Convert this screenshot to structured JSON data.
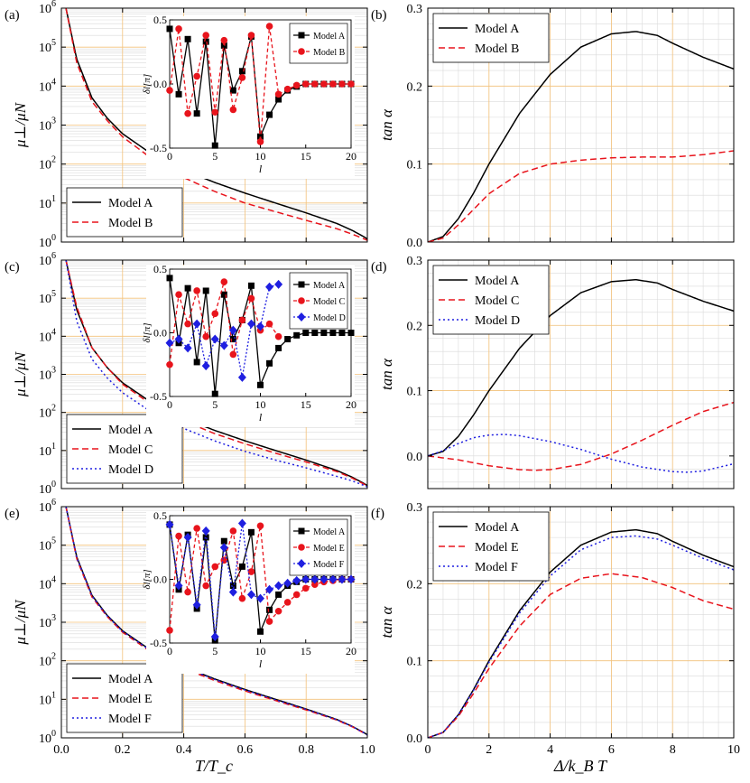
{
  "figure": {
    "xlabel_left": "T/T_c",
    "xlabel_right": "Δ/k_B T"
  },
  "colors": {
    "model_a": "#000000",
    "model_red": "#e8141c",
    "model_blue": "#1f1fe0",
    "grid_major": "#f4c27a",
    "grid_minor": "#dadada"
  },
  "chart_data": [
    {
      "id": "a",
      "panel_label": "(a)",
      "type": "line",
      "scale": "log",
      "ylabel": "μ⊥/μN",
      "xlim": [
        0,
        1
      ],
      "ylim_exp": [
        0,
        6
      ],
      "xticks": [
        "0.0",
        "0.2",
        "0.4",
        "0.6",
        "0.8",
        "1.0"
      ],
      "yticks": [
        "10^0",
        "10^1",
        "10^2",
        "10^3",
        "10^4",
        "10^5",
        "10^6"
      ],
      "show_xticklabels": false,
      "legend_loc": "lower-left",
      "series": [
        {
          "name": "Model A",
          "color": "#000000",
          "dash": "",
          "x": [
            0.015,
            0.05,
            0.1,
            0.15,
            0.2,
            0.3,
            0.4,
            0.5,
            0.6,
            0.7,
            0.8,
            0.9,
            0.95,
            0.99,
            1.0
          ],
          "y": [
            1000000,
            50000,
            5000,
            1500,
            600,
            170,
            70,
            34,
            18,
            10,
            5.6,
            3.0,
            2.0,
            1.35,
            1.2
          ]
        },
        {
          "name": "Model B",
          "color": "#e8141c",
          "dash": "7,4",
          "x": [
            0.015,
            0.05,
            0.1,
            0.15,
            0.2,
            0.3,
            0.4,
            0.5,
            0.6,
            0.7,
            0.8,
            0.9,
            0.95,
            0.99,
            1.0
          ],
          "y": [
            1000000,
            40000,
            4000,
            1300,
            500,
            130,
            45,
            20,
            10,
            6,
            3.6,
            2.2,
            1.6,
            1.2,
            1.1
          ]
        }
      ],
      "inset": {
        "xlabel": "l",
        "ylabel": "δl[π]",
        "xlim": [
          0,
          20
        ],
        "ylim": [
          -0.5,
          0.5
        ],
        "xticks": [
          "0",
          "5",
          "10",
          "15",
          "20"
        ],
        "yticks": [
          "-0.5",
          "0.0",
          "0.5"
        ],
        "series": [
          {
            "name": "Model A",
            "color": "#000000",
            "dash": "",
            "marker": "square",
            "y": [
              0.43,
              -0.08,
              0.35,
              -0.23,
              0.33,
              -0.48,
              0.3,
              -0.05,
              0.1,
              0.37,
              -0.41,
              -0.24,
              -0.12,
              -0.05,
              -0.02,
              0.0,
              0.0,
              0.0,
              0.0,
              0.0,
              0.0
            ]
          },
          {
            "name": "Model B",
            "color": "#e8141c",
            "dash": "4,3",
            "marker": "circle",
            "y": [
              -0.05,
              0.43,
              -0.23,
              0.06,
              0.38,
              -0.22,
              0.34,
              -0.2,
              0.05,
              0.38,
              -0.45,
              0.45,
              -0.08,
              -0.04,
              -0.01,
              0.0,
              0.0,
              0.0,
              0.0,
              0.0,
              0.0
            ]
          }
        ]
      }
    },
    {
      "id": "b",
      "panel_label": "(b)",
      "type": "line",
      "scale": "linear",
      "ylabel": "tan α",
      "xlim": [
        0,
        10
      ],
      "ylim": [
        0,
        0.3
      ],
      "xticks": [
        "0",
        "2",
        "4",
        "6",
        "8",
        "10"
      ],
      "yticks": [
        "0.0",
        "0.1",
        "0.2",
        "0.3"
      ],
      "show_xticklabels": false,
      "legend_loc": "top-left",
      "series": [
        {
          "name": "Model A",
          "color": "#000000",
          "dash": "",
          "x": [
            0,
            0.5,
            1,
            1.5,
            2,
            3,
            4,
            5,
            6,
            6.8,
            7.5,
            8,
            9,
            10
          ],
          "y": [
            0,
            0.007,
            0.03,
            0.063,
            0.1,
            0.165,
            0.215,
            0.25,
            0.267,
            0.27,
            0.265,
            0.255,
            0.237,
            0.222
          ]
        },
        {
          "name": "Model B",
          "color": "#e8141c",
          "dash": "7,4",
          "x": [
            0,
            0.5,
            1,
            1.5,
            2,
            3,
            4,
            5,
            6,
            7,
            8,
            9,
            10
          ],
          "y": [
            0,
            0.005,
            0.022,
            0.042,
            0.062,
            0.088,
            0.1,
            0.105,
            0.108,
            0.109,
            0.109,
            0.112,
            0.117
          ]
        }
      ]
    },
    {
      "id": "c",
      "panel_label": "(c)",
      "type": "line",
      "scale": "log",
      "ylabel": "μ⊥/μN",
      "xlim": [
        0,
        1
      ],
      "ylim_exp": [
        0,
        6
      ],
      "xticks": [
        "0.0",
        "0.2",
        "0.4",
        "0.6",
        "0.8",
        "1.0"
      ],
      "yticks": [
        "10^0",
        "10^1",
        "10^2",
        "10^3",
        "10^4",
        "10^5",
        "10^6"
      ],
      "show_xticklabels": false,
      "legend_loc": "lower-left",
      "series": [
        {
          "name": "Model A",
          "color": "#000000",
          "dash": "",
          "x": [
            0.015,
            0.05,
            0.1,
            0.15,
            0.2,
            0.3,
            0.4,
            0.5,
            0.6,
            0.7,
            0.8,
            0.9,
            0.95,
            0.99,
            1.0
          ],
          "y": [
            1000000,
            50000,
            5000,
            1500,
            600,
            170,
            70,
            34,
            18,
            10,
            5.6,
            3.0,
            2.0,
            1.35,
            1.2
          ]
        },
        {
          "name": "Model C",
          "color": "#e8141c",
          "dash": "7,4",
          "x": [
            0.015,
            0.05,
            0.1,
            0.15,
            0.2,
            0.3,
            0.4,
            0.5,
            0.6,
            0.7,
            0.8,
            0.9,
            0.95,
            0.99,
            1.0
          ],
          "y": [
            1000000,
            60000,
            5000,
            1500,
            550,
            150,
            60,
            28,
            15,
            8.5,
            5,
            2.8,
            1.9,
            1.3,
            1.15
          ]
        },
        {
          "name": "Model D",
          "color": "#1f1fe0",
          "dash": "2,3",
          "x": [
            0.015,
            0.05,
            0.1,
            0.15,
            0.2,
            0.3,
            0.4,
            0.5,
            0.6,
            0.7,
            0.8,
            0.9,
            0.95,
            0.99,
            1.0
          ],
          "y": [
            1000000,
            25000,
            2500,
            800,
            330,
            95,
            38,
            18,
            9.5,
            5.6,
            3.5,
            2.1,
            1.6,
            1.2,
            1.1
          ]
        }
      ],
      "inset": {
        "xlabel": "l",
        "ylabel": "δl[π]",
        "xlim": [
          0,
          20
        ],
        "ylim": [
          -0.5,
          0.5
        ],
        "xticks": [
          "0",
          "5",
          "10",
          "15",
          "20"
        ],
        "yticks": [
          "-0.5",
          "0.0",
          "0.5"
        ],
        "series": [
          {
            "name": "Model A",
            "color": "#000000",
            "dash": "",
            "marker": "square",
            "y": [
              0.43,
              -0.08,
              0.35,
              -0.23,
              0.33,
              -0.48,
              0.3,
              -0.05,
              0.1,
              0.37,
              -0.41,
              -0.24,
              -0.12,
              -0.05,
              -0.02,
              0.0,
              0.0,
              0.0,
              0.0,
              0.0,
              0.0
            ]
          },
          {
            "name": "Model C",
            "color": "#e8141c",
            "dash": "4,3",
            "marker": "circle",
            "y": [
              -0.25,
              0.3,
              0.07,
              0.33,
              -0.03,
              0.15,
              0.4,
              -0.17,
              0.1,
              0.27,
              0.02,
              0.07,
              -0.03
            ]
          },
          {
            "name": "Model D",
            "color": "#1f1fe0",
            "dash": "2,2",
            "marker": "diamond",
            "y": [
              -0.08,
              -0.05,
              -0.12,
              0.07,
              -0.26,
              -0.05,
              -0.1,
              0.02,
              -0.35,
              0.07,
              0.05,
              0.36,
              0.38
            ]
          }
        ]
      }
    },
    {
      "id": "d",
      "panel_label": "(d)",
      "type": "line",
      "scale": "linear",
      "ylabel": "tan α",
      "xlim": [
        0,
        10
      ],
      "ylim": [
        -0.05,
        0.3
      ],
      "xticks": [
        "0",
        "2",
        "4",
        "6",
        "8",
        "10"
      ],
      "yticks": [
        "0.0",
        "0.1",
        "0.2",
        "0.3"
      ],
      "show_xticklabels": false,
      "legend_loc": "top-left",
      "series": [
        {
          "name": "Model A",
          "color": "#000000",
          "dash": "",
          "x": [
            0,
            0.5,
            1,
            1.5,
            2,
            3,
            4,
            5,
            6,
            6.8,
            7.5,
            8,
            9,
            10
          ],
          "y": [
            0,
            0.007,
            0.03,
            0.063,
            0.1,
            0.165,
            0.215,
            0.25,
            0.267,
            0.27,
            0.265,
            0.255,
            0.237,
            0.222
          ]
        },
        {
          "name": "Model C",
          "color": "#e8141c",
          "dash": "7,4",
          "x": [
            0,
            1,
            2,
            3,
            3.5,
            4,
            5,
            6,
            7,
            8,
            9,
            10
          ],
          "y": [
            0,
            -0.006,
            -0.015,
            -0.021,
            -0.022,
            -0.021,
            -0.013,
            0.003,
            0.024,
            0.047,
            0.068,
            0.082
          ]
        },
        {
          "name": "Model D",
          "color": "#1f1fe0",
          "dash": "2,3",
          "x": [
            0,
            0.5,
            1,
            1.5,
            2,
            2.5,
            3,
            4,
            5,
            6,
            7,
            8,
            8.5,
            9,
            10
          ],
          "y": [
            0,
            0.008,
            0.019,
            0.028,
            0.032,
            0.033,
            0.031,
            0.022,
            0.01,
            -0.005,
            -0.017,
            -0.024,
            -0.025,
            -0.023,
            -0.012
          ]
        }
      ]
    },
    {
      "id": "e",
      "panel_label": "(e)",
      "type": "line",
      "scale": "log",
      "ylabel": "μ⊥/μN",
      "xlim": [
        0,
        1
      ],
      "ylim_exp": [
        0,
        6
      ],
      "xticks": [
        "0.0",
        "0.2",
        "0.4",
        "0.6",
        "0.8",
        "1.0"
      ],
      "yticks": [
        "10^0",
        "10^1",
        "10^2",
        "10^3",
        "10^4",
        "10^5",
        "10^6"
      ],
      "show_xticklabels": true,
      "legend_loc": "lower-left",
      "series": [
        {
          "name": "Model A",
          "color": "#000000",
          "dash": "",
          "x": [
            0.015,
            0.05,
            0.1,
            0.15,
            0.2,
            0.3,
            0.4,
            0.5,
            0.6,
            0.7,
            0.8,
            0.9,
            0.95,
            0.99,
            1.0
          ],
          "y": [
            1000000,
            50000,
            5000,
            1500,
            600,
            170,
            70,
            34,
            18,
            10,
            5.6,
            3.0,
            2.0,
            1.35,
            1.2
          ]
        },
        {
          "name": "Model E",
          "color": "#e8141c",
          "dash": "7,4",
          "x": [
            0.015,
            0.05,
            0.1,
            0.15,
            0.2,
            0.3,
            0.4,
            0.5,
            0.6,
            0.7,
            0.8,
            0.9,
            0.95,
            0.99,
            1.0
          ],
          "y": [
            1000000,
            45000,
            4500,
            1400,
            550,
            155,
            63,
            31,
            16.5,
            9.3,
            5.3,
            2.9,
            1.95,
            1.32,
            1.18
          ]
        },
        {
          "name": "Model F",
          "color": "#1f1fe0",
          "dash": "2,3",
          "x": [
            0.015,
            0.05,
            0.1,
            0.15,
            0.2,
            0.3,
            0.4,
            0.5,
            0.6,
            0.7,
            0.8,
            0.9,
            0.95,
            0.99,
            1.0
          ],
          "y": [
            1000000,
            48000,
            4800,
            1450,
            580,
            165,
            68,
            33,
            17.5,
            9.7,
            5.5,
            2.95,
            1.98,
            1.34,
            1.19
          ]
        }
      ],
      "inset": {
        "xlabel": "l",
        "ylabel": "δl[π]",
        "xlim": [
          0,
          20
        ],
        "ylim": [
          -0.5,
          0.5
        ],
        "xticks": [
          "0",
          "5",
          "10",
          "15",
          "20"
        ],
        "yticks": [
          "-0.5",
          "0.0",
          "0.5"
        ],
        "series": [
          {
            "name": "Model A",
            "color": "#000000",
            "dash": "",
            "marker": "square",
            "y": [
              0.43,
              -0.08,
              0.35,
              -0.23,
              0.33,
              -0.48,
              0.3,
              -0.05,
              0.1,
              0.37,
              -0.41,
              -0.24,
              -0.12,
              -0.05,
              -0.02,
              0.0,
              0.0,
              0.0,
              0.0,
              0.0,
              0.0
            ]
          },
          {
            "name": "Model E",
            "color": "#e8141c",
            "dash": "4,3",
            "marker": "circle",
            "y": [
              -0.4,
              0.34,
              -0.1,
              0.4,
              -0.05,
              0.1,
              0.15,
              0.38,
              -0.15,
              0.06,
              0.42,
              -0.33,
              -0.25,
              -0.18,
              -0.12,
              -0.07,
              -0.04,
              -0.02,
              -0.01,
              0.0,
              0.0
            ]
          },
          {
            "name": "Model F",
            "color": "#1f1fe0",
            "dash": "2,2",
            "marker": "diamond",
            "y": [
              0.43,
              -0.05,
              0.33,
              -0.2,
              0.38,
              -0.45,
              0.25,
              -0.1,
              0.44,
              -0.12,
              -0.15,
              -0.08,
              -0.05,
              -0.03,
              -0.01,
              0.0,
              0.0,
              0.0,
              0.0,
              0.0,
              0.0
            ]
          }
        ]
      }
    },
    {
      "id": "f",
      "panel_label": "(f)",
      "type": "line",
      "scale": "linear",
      "ylabel": "tan α",
      "xlim": [
        0,
        10
      ],
      "ylim": [
        0,
        0.3
      ],
      "xticks": [
        "0",
        "2",
        "4",
        "6",
        "8",
        "10"
      ],
      "yticks": [
        "0.0",
        "0.1",
        "0.2",
        "0.3"
      ],
      "show_xticklabels": true,
      "legend_loc": "top-left",
      "series": [
        {
          "name": "Model A",
          "color": "#000000",
          "dash": "",
          "x": [
            0,
            0.5,
            1,
            1.5,
            2,
            3,
            4,
            5,
            6,
            6.8,
            7.5,
            8,
            9,
            10
          ],
          "y": [
            0,
            0.007,
            0.03,
            0.063,
            0.1,
            0.165,
            0.215,
            0.25,
            0.267,
            0.27,
            0.265,
            0.255,
            0.237,
            0.222
          ]
        },
        {
          "name": "Model E",
          "color": "#e8141c",
          "dash": "7,4",
          "x": [
            0,
            0.5,
            1,
            1.5,
            2,
            3,
            4,
            5,
            6,
            7,
            8,
            9,
            10
          ],
          "y": [
            0,
            0.007,
            0.028,
            0.058,
            0.09,
            0.145,
            0.186,
            0.207,
            0.213,
            0.208,
            0.195,
            0.178,
            0.167
          ]
        },
        {
          "name": "Model F",
          "color": "#1f1fe0",
          "dash": "2,3",
          "x": [
            0,
            0.5,
            1,
            1.5,
            2,
            3,
            4,
            5,
            6,
            6.8,
            7.5,
            8,
            9,
            10
          ],
          "y": [
            0,
            0.007,
            0.03,
            0.062,
            0.098,
            0.162,
            0.21,
            0.244,
            0.26,
            0.262,
            0.258,
            0.25,
            0.233,
            0.218
          ]
        }
      ]
    }
  ]
}
